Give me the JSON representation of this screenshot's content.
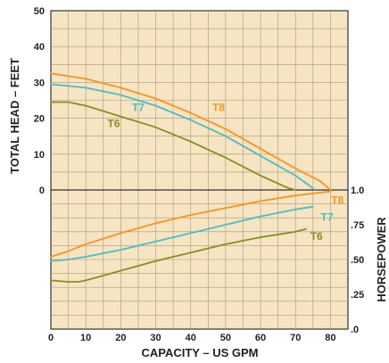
{
  "chart_data": {
    "type": "line",
    "xlabel": "CAPACITY – US GPM",
    "x_ticks": [
      "0",
      "10",
      "20",
      "30",
      "40",
      "50",
      "60",
      "70",
      "80"
    ],
    "xlim": [
      0,
      85
    ],
    "head": {
      "ylabel": "TOTAL HEAD – FEET",
      "ylim": [
        0,
        50
      ],
      "y_ticks": [
        "0",
        "10",
        "20",
        "30",
        "40",
        "50"
      ]
    },
    "horsepower": {
      "ylabel": "HORSEPOWER",
      "ylim": [
        0,
        1.0
      ],
      "y_ticks": [
        ".0",
        ".25",
        ".50",
        ".75",
        "1.0"
      ],
      "y_tick_values": [
        0,
        0.25,
        0.5,
        0.75,
        1.0
      ]
    },
    "colors": {
      "T8": "#f7941d",
      "T7": "#4cbdc2",
      "T6": "#8a8e20",
      "grid": "#a89a7c",
      "background": "#f6e4c2"
    },
    "series": [
      {
        "name": "T8",
        "axis": "head",
        "x": [
          0,
          10,
          20,
          30,
          40,
          50,
          60,
          70,
          77,
          80
        ],
        "y": [
          32.5,
          31,
          28.5,
          25.5,
          21.5,
          17,
          11.5,
          6,
          2.5,
          0
        ]
      },
      {
        "name": "T7",
        "axis": "head",
        "x": [
          0,
          10,
          20,
          30,
          40,
          50,
          60,
          70,
          75
        ],
        "y": [
          29.5,
          28.5,
          26.5,
          23.5,
          19.5,
          15,
          9.5,
          4,
          0.5
        ]
      },
      {
        "name": "T6",
        "axis": "head",
        "x": [
          0,
          5,
          10,
          20,
          30,
          40,
          50,
          60,
          68,
          70
        ],
        "y": [
          24.5,
          24.5,
          23.5,
          20.5,
          17.5,
          13.5,
          9,
          4,
          0.5,
          0
        ]
      },
      {
        "name": "T8",
        "axis": "horsepower",
        "x": [
          0,
          5,
          10,
          20,
          30,
          40,
          50,
          60,
          70,
          80
        ],
        "y": [
          0.52,
          0.56,
          0.61,
          0.69,
          0.76,
          0.82,
          0.87,
          0.92,
          0.96,
          0.99
        ]
      },
      {
        "name": "T7",
        "axis": "horsepower",
        "x": [
          0,
          5,
          10,
          20,
          30,
          40,
          50,
          60,
          70,
          75
        ],
        "y": [
          0.49,
          0.5,
          0.52,
          0.57,
          0.63,
          0.69,
          0.75,
          0.81,
          0.86,
          0.88
        ]
      },
      {
        "name": "T6",
        "axis": "horsepower",
        "x": [
          0,
          5,
          8,
          10,
          20,
          30,
          40,
          50,
          60,
          70,
          73
        ],
        "y": [
          0.35,
          0.34,
          0.34,
          0.35,
          0.42,
          0.49,
          0.55,
          0.61,
          0.66,
          0.7,
          0.72
        ]
      }
    ],
    "grid": true
  }
}
